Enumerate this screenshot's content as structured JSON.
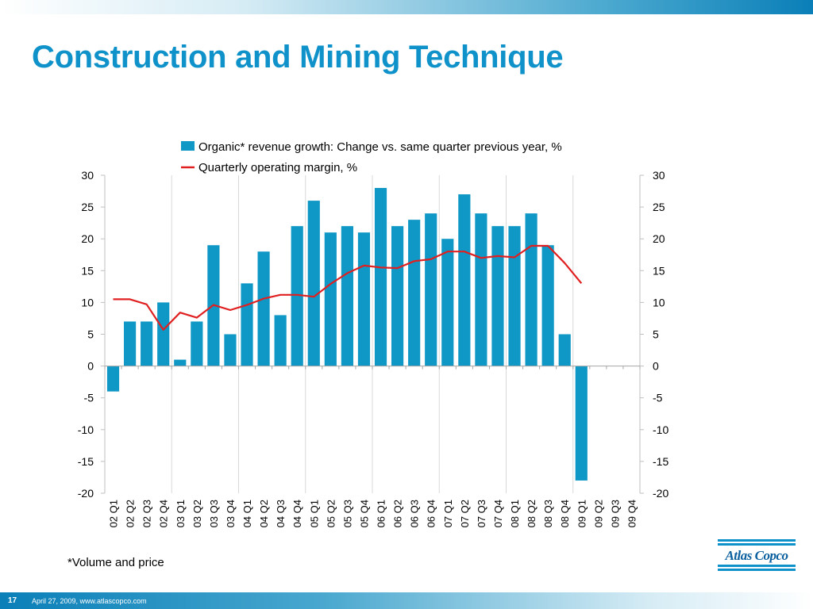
{
  "slide": {
    "title": "Construction and Mining Technique",
    "footnote": "*Volume and price",
    "page_number": "17",
    "footer": "April 27, 2009, www.atlascopco.com",
    "logo_text": "Atlas Copco",
    "accent_color": "#0f92c9"
  },
  "chart_data": {
    "type": "bar",
    "title": "",
    "xlabel": "",
    "ylabel": "",
    "categories": [
      "02 Q1",
      "02 Q2",
      "02 Q3",
      "02 Q4",
      "03 Q1",
      "03 Q2",
      "03 Q3",
      "03 Q4",
      "04 Q1",
      "04 Q2",
      "04 Q3",
      "04 Q4",
      "05 Q1",
      "05 Q2",
      "05 Q3",
      "05 Q4",
      "06 Q1",
      "06 Q2",
      "06 Q3",
      "06 Q4",
      "07 Q1",
      "07 Q2",
      "07 Q3",
      "07 Q4",
      "08 Q1",
      "08 Q2",
      "08 Q3",
      "08 Q4",
      "09 Q1",
      "09 Q2",
      "09 Q3",
      "09 Q4"
    ],
    "ylim": [
      -20,
      30
    ],
    "y_ticks": [
      30,
      25,
      20,
      15,
      10,
      5,
      0,
      -5,
      -10,
      -15,
      -20
    ],
    "y_tick_labels": [
      "30",
      "25",
      "20",
      "15",
      "10",
      "5",
      "0",
      "-5",
      "-10",
      "-15",
      "-20"
    ],
    "grid": "vertical lines every 4 categories",
    "legend_position": "top",
    "series": [
      {
        "name": "Organic* revenue growth: Change vs. same quarter previous year, %",
        "type": "bar",
        "color": "#0f97c6",
        "values": [
          -4,
          7,
          7,
          10,
          1,
          7,
          19,
          5,
          13,
          18,
          8,
          22,
          26,
          21,
          22,
          21,
          28,
          22,
          23,
          24,
          20,
          27,
          24,
          22,
          22,
          24,
          19,
          5,
          -18,
          null,
          null,
          null
        ]
      },
      {
        "name": "Quarterly operating margin, %",
        "type": "line",
        "color": "#e02020",
        "values": [
          10.5,
          10.5,
          9.7,
          5.7,
          8.4,
          7.6,
          9.6,
          8.8,
          9.6,
          10.6,
          11.2,
          11.2,
          10.9,
          12.9,
          14.6,
          15.8,
          15.5,
          15.4,
          16.5,
          16.8,
          18,
          18,
          17,
          17.3,
          17.1,
          18.9,
          18.9,
          16.2,
          13,
          null,
          null,
          null
        ]
      }
    ]
  }
}
